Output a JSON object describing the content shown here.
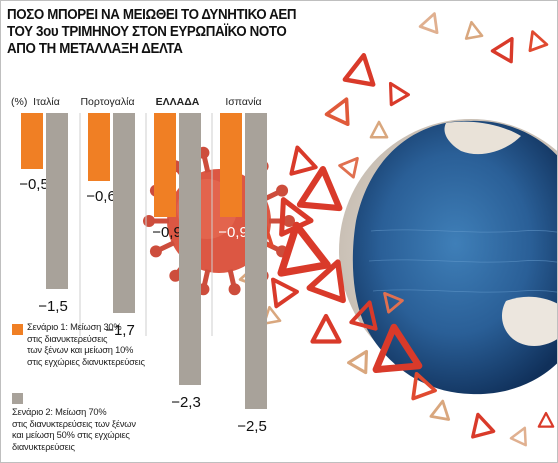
{
  "title_lines": [
    "ΠΟΣΟ ΜΠΟΡΕΙ ΝΑ ΜΕΙΩΘΕΙ ΤΟ ΔΥΝΗΤΙΚΟ ΑΕΠ",
    "ΤΟΥ 3ου ΤΡΙΜΗΝΟΥ ΣΤΟΝ ΕΥΡΩΠΑΪΚΟ ΝΟΤΟ",
    "ΑΠΟ ΤΗ ΜΕΤΑΛΛΑΞΗ ΔΕΛΤΑ"
  ],
  "colors": {
    "scenario1": "#f07f24",
    "scenario2": "#a8a29a",
    "accent_red": "#d93a2a"
  },
  "chart_data": {
    "type": "bar",
    "unit_label": "(%)",
    "categories": [
      "Ιταλία",
      "Πορτογαλία",
      "ΕΛΛΑΔΑ",
      "Ισπανία"
    ],
    "series": [
      {
        "name": "Σενάριο 1: Μείωση 30% στις διανυκτερεύσεις των ξένων και μείωση 10% στις εγχώριες διανυκτερεύσεις",
        "values": [
          -0.5,
          -0.6,
          -0.9,
          -0.9
        ],
        "labels": [
          "-0,5",
          "-0,6",
          "-0,9",
          "-0,9"
        ]
      },
      {
        "name": "Σενάριο 2: Μείωση 70% στις διανυκτερεύσεις των ξένων και μείωση 50% στις εγχώριες διανυκτερεύσεις",
        "values": [
          -1.5,
          -1.7,
          -2.3,
          -2.5
        ],
        "labels": [
          "-1,5",
          "-1,7",
          "-2,3",
          "-2,5"
        ]
      }
    ],
    "ylim": [
      -2.5,
      0
    ]
  },
  "legend": {
    "scenario1_lines": [
      "Σενάριο 1: Μείωση 30%",
      "στις διανυκτερεύσεις",
      "των ξένων και μείωση 10%",
      "στις εγχώριες διανυκτερεύσεις"
    ],
    "scenario2_lines": [
      "Σενάριο 2: Μείωση 70%",
      "στις διανυκτερεύσεις των ξένων",
      "και μείωση 50% στις εγχώριες",
      "διανυκτερεύσεις"
    ]
  }
}
